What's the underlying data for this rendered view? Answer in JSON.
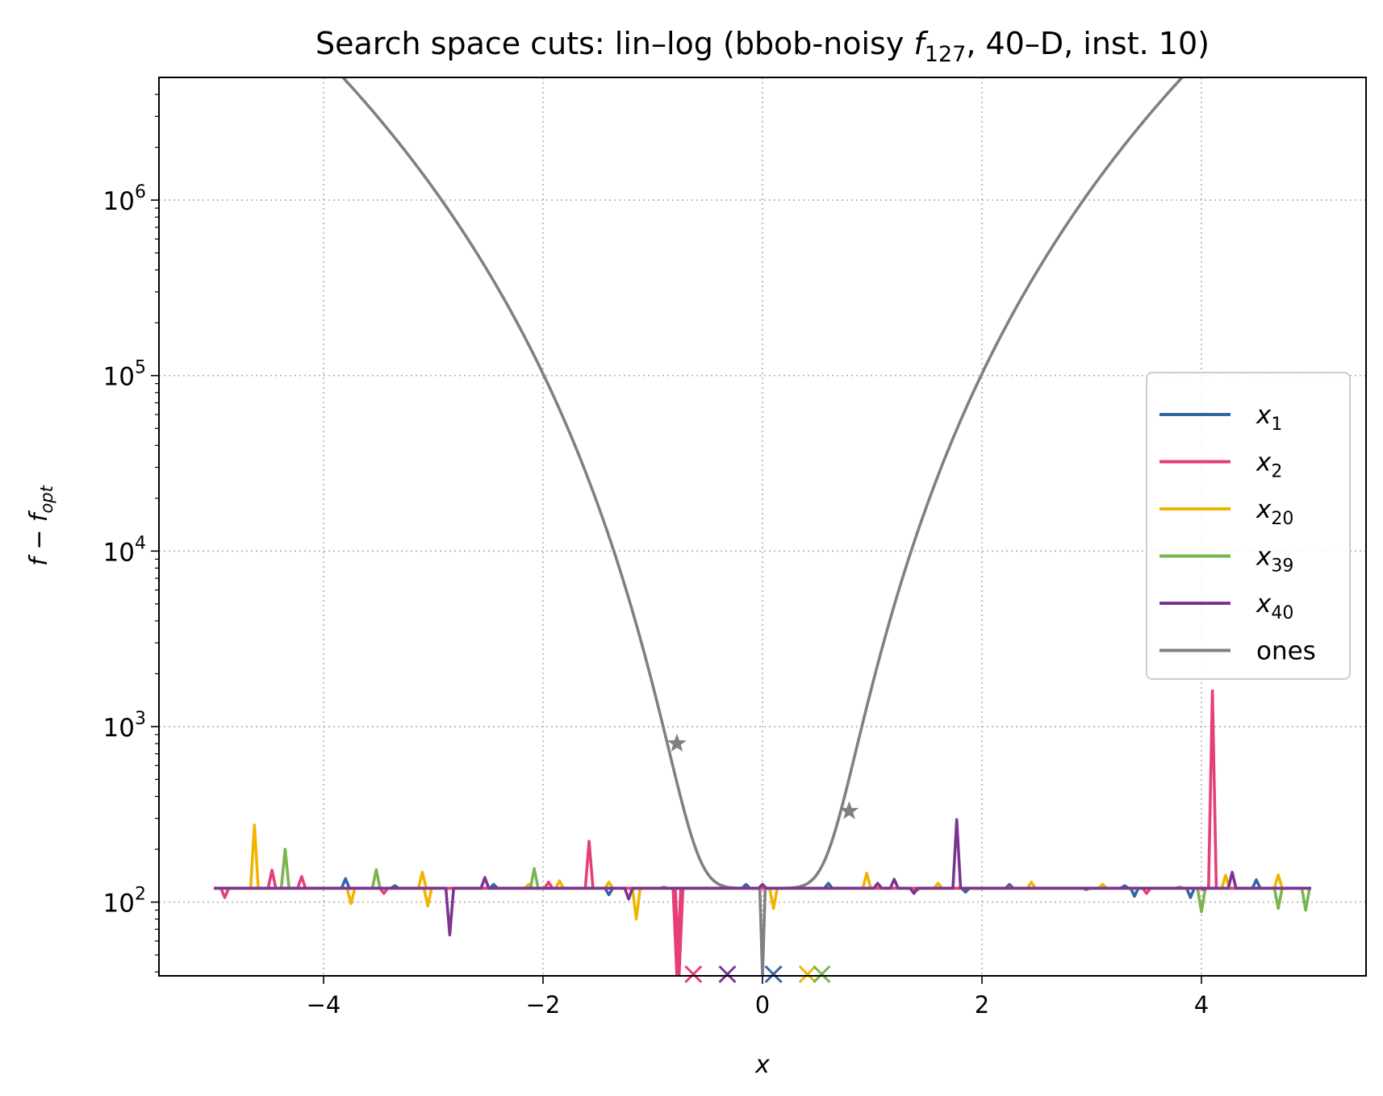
{
  "chart_data": {
    "type": "line",
    "title": {
      "prefix": "Search space cuts: lin–log (bbob-noisy ",
      "func": "f",
      "func_sub": "127",
      "suffix": ", 40–D, inst. 10)"
    },
    "xlabel": "x",
    "ylabel": {
      "base": "f − f",
      "sub": "opt"
    },
    "xlim": [
      -5.5,
      5.5
    ],
    "ylim": [
      38,
      5000000
    ],
    "yscale": "log",
    "grid": true,
    "legend_position": "center-right",
    "x_ticks": [
      {
        "value": -4,
        "label": "−4"
      },
      {
        "value": -2,
        "label": "−2"
      },
      {
        "value": 0,
        "label": "0"
      },
      {
        "value": 2,
        "label": "2"
      },
      {
        "value": 4,
        "label": "4"
      }
    ],
    "y_ticks": [
      {
        "value": 100,
        "base": "10",
        "exp": "2"
      },
      {
        "value": 1000,
        "base": "10",
        "exp": "3"
      },
      {
        "value": 10000,
        "base": "10",
        "exp": "4"
      },
      {
        "value": 100000,
        "base": "10",
        "exp": "5"
      },
      {
        "value": 1000000,
        "base": "10",
        "exp": "6"
      }
    ],
    "series": [
      {
        "name": "x",
        "sub": "1",
        "color": "#3366a4",
        "baseline": 120,
        "spikes": [
          [
            -3.8,
            136
          ],
          [
            -3.35,
            124
          ],
          [
            -2.45,
            126
          ],
          [
            -1.4,
            110
          ],
          [
            -0.15,
            126
          ],
          [
            0.6,
            128
          ],
          [
            1.85,
            114
          ],
          [
            2.25,
            126
          ],
          [
            2.95,
            118
          ],
          [
            3.3,
            124
          ],
          [
            3.39,
            108
          ],
          [
            3.9,
            106
          ],
          [
            4.5,
            134
          ]
        ],
        "optimum_x": 0.1
      },
      {
        "name": "x",
        "sub": "2",
        "color": "#e63e78",
        "baseline": 120,
        "spikes": [
          [
            -4.9,
            106
          ],
          [
            -4.47,
            152
          ],
          [
            -4.2,
            140
          ],
          [
            -3.45,
            112
          ],
          [
            -1.95,
            130
          ],
          [
            -1.58,
            222
          ],
          [
            -0.78,
            38
          ],
          [
            -0.76,
            38
          ],
          [
            2.25,
            122
          ],
          [
            3.5,
            112
          ],
          [
            4.02,
            118
          ],
          [
            4.1,
            1600
          ],
          [
            4.75,
            120
          ]
        ],
        "optimum_x": -0.63
      },
      {
        "name": "x",
        "sub": "20",
        "color": "#f0b400",
        "baseline": 120,
        "spikes": [
          [
            -4.63,
            275
          ],
          [
            -3.75,
            98
          ],
          [
            -3.1,
            148
          ],
          [
            -3.05,
            95
          ],
          [
            -2.13,
            126
          ],
          [
            -1.85,
            132
          ],
          [
            -1.4,
            130
          ],
          [
            -1.15,
            80
          ],
          [
            0.1,
            92
          ],
          [
            0.95,
            146
          ],
          [
            1.6,
            128
          ],
          [
            2.45,
            130
          ],
          [
            3.1,
            126
          ],
          [
            4.22,
            142
          ],
          [
            4.7,
            143
          ]
        ],
        "optimum_x": 0.41
      },
      {
        "name": "x",
        "sub": "39",
        "color": "#7ab54f",
        "baseline": 120,
        "spikes": [
          [
            -4.35,
            200
          ],
          [
            -3.52,
            153
          ],
          [
            -2.08,
            155
          ],
          [
            -0.9,
            122
          ],
          [
            1.4,
            116
          ],
          [
            3.8,
            122
          ],
          [
            4.0,
            88
          ],
          [
            4.53,
            120
          ],
          [
            4.7,
            92
          ],
          [
            4.95,
            90
          ]
        ],
        "optimum_x": 0.54
      },
      {
        "name": "x",
        "sub": "40",
        "color": "#7b3590",
        "baseline": 120,
        "spikes": [
          [
            -2.85,
            65
          ],
          [
            -2.53,
            138
          ],
          [
            -1.22,
            104
          ],
          [
            0.0,
            126
          ],
          [
            1.05,
            128
          ],
          [
            1.2,
            135
          ],
          [
            1.38,
            112
          ],
          [
            1.77,
            295
          ],
          [
            4.28,
            148
          ]
        ],
        "optimum_x": -0.32
      },
      {
        "name": "ones",
        "color": "#808080",
        "curve": {
          "coefficient": 1600,
          "power": 6,
          "floor": 120
        },
        "dip_x": 0.0,
        "dip_y": 38,
        "markers": [
          [
            -0.78,
            800
          ],
          [
            0.79,
            330
          ]
        ]
      }
    ],
    "x_domain": [
      -5,
      5
    ]
  }
}
